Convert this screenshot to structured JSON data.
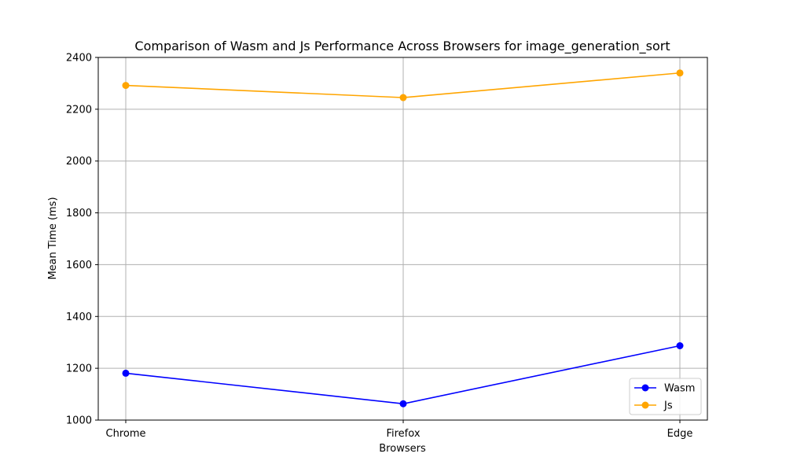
{
  "chart_data": {
    "type": "line",
    "title": "Comparison of Wasm and Js Performance Across Browsers for image_generation_sort",
    "xlabel": "Browsers",
    "ylabel": "Mean Time (ms)",
    "categories": [
      "Chrome",
      "Firefox",
      "Edge"
    ],
    "ylim": [
      1000,
      2400
    ],
    "yticks": [
      1000,
      1200,
      1400,
      1600,
      1800,
      2000,
      2200,
      2400
    ],
    "grid": true,
    "legend_position": "lower-right",
    "series": [
      {
        "name": "Wasm",
        "color": "#0000ff",
        "marker": "circle",
        "values": [
          1181,
          1063,
          1287
        ]
      },
      {
        "name": "Js",
        "color": "#ffa500",
        "marker": "circle",
        "values": [
          2292,
          2245,
          2340
        ]
      }
    ]
  }
}
